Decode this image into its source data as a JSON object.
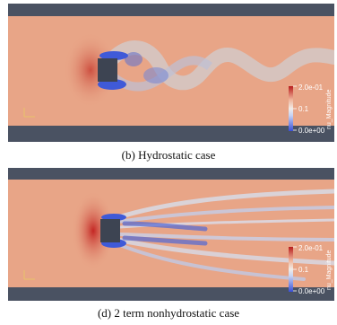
{
  "panels": [
    {
      "id": "b",
      "caption": "(b) Hydrostatic case",
      "colorbar": {
        "max_label": "2.0e-01",
        "mid_label": "0.1",
        "min_label": "0.0e+00",
        "title": "nu_Magnitude"
      }
    },
    {
      "id": "d",
      "caption": "(d) 2 term nonhydrostatic case",
      "colorbar": {
        "max_label": "2.0e-01",
        "mid_label": "0.1",
        "min_label": "0.0e+00",
        "title": "nu_Magnitude"
      }
    }
  ],
  "colors": {
    "wall": "#4a5262",
    "field": "#e8a587",
    "high": "#c0201e",
    "low": "#3354d6",
    "obstacle": "#3d4452"
  }
}
